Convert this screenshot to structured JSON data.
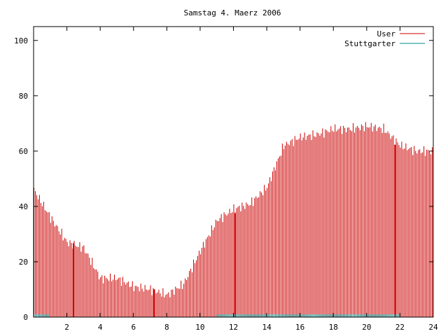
{
  "chart_data": {
    "type": "bar",
    "title": "Samstag 4. Maerz 2006",
    "xlabel": "",
    "ylabel": "",
    "xlim": [
      0,
      24
    ],
    "ylim": [
      0,
      105
    ],
    "x_ticks": [
      "2",
      "4",
      "6",
      "8",
      "10",
      "12",
      "14",
      "16",
      "18",
      "20",
      "22",
      "24"
    ],
    "y_ticks": [
      "0",
      "20",
      "40",
      "60",
      "80",
      "100"
    ],
    "legend_position": "top-right",
    "grid": false,
    "samples_per_hour": 12,
    "series": [
      {
        "name": "User",
        "color": "#cc0000",
        "hourly_values": [
          46,
          36,
          27,
          25,
          14,
          14,
          11,
          10,
          8,
          12,
          24,
          35,
          39,
          41,
          47,
          62,
          65,
          66,
          68,
          68,
          69,
          68,
          62,
          60
        ]
      },
      {
        "name": "Stuttgarter",
        "color": "#008b8b",
        "hourly_values": [
          1,
          0,
          0,
          0,
          0,
          0,
          0,
          0,
          0,
          0,
          0,
          1,
          1,
          1,
          1,
          1,
          1,
          1,
          1,
          1,
          1,
          1,
          0,
          0
        ]
      }
    ],
    "highlight_hours": [
      2.4,
      7.25,
      12.1,
      21.7
    ]
  }
}
